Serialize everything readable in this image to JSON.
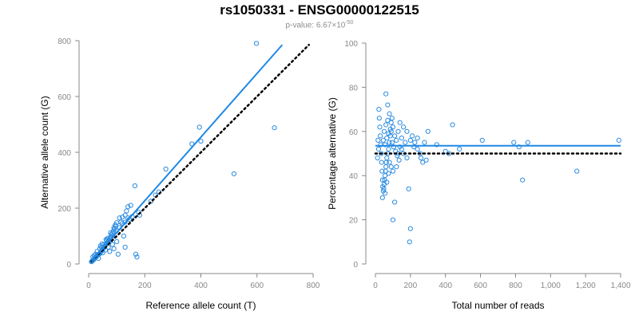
{
  "title": "rs1050331 - ENSG00000122515",
  "subtitle": {
    "prefix": "p-value: 6.67×10",
    "exponent": "-50"
  },
  "colors": {
    "points": "#2a8be0",
    "fit": "#1e88e5",
    "reference": "#000000",
    "axis": "#888888"
  },
  "chart_data": [
    {
      "type": "scatter",
      "xlabel": "Reference allele count (T)",
      "ylabel": "Alternative allele count (G)",
      "xlim": [
        0,
        800
      ],
      "ylim": [
        0,
        800
      ],
      "xticks": [
        "0",
        "200",
        "400",
        "600",
        "800"
      ],
      "yticks": [
        "0",
        "200",
        "400",
        "600",
        "800"
      ],
      "fit_line": {
        "x": [
          10,
          690
        ],
        "y": [
          10,
          785
        ]
      },
      "reference_line": {
        "x": [
          10,
          785
        ],
        "y": [
          10,
          785
        ]
      },
      "points": [
        [
          598,
          790
        ],
        [
          395,
          490
        ],
        [
          662,
          488
        ],
        [
          400,
          440
        ],
        [
          368,
          430
        ],
        [
          518,
          323
        ],
        [
          275,
          340
        ],
        [
          250,
          258
        ],
        [
          238,
          247
        ],
        [
          222,
          225
        ],
        [
          165,
          280
        ],
        [
          168,
          35
        ],
        [
          172,
          25
        ],
        [
          150,
          210
        ],
        [
          140,
          205
        ],
        [
          182,
          175
        ],
        [
          178,
          185
        ],
        [
          135,
          190
        ],
        [
          130,
          175
        ],
        [
          120,
          168
        ],
        [
          110,
          165
        ],
        [
          100,
          148
        ],
        [
          95,
          140
        ],
        [
          90,
          130
        ],
        [
          88,
          118
        ],
        [
          85,
          110
        ],
        [
          80,
          105
        ],
        [
          78,
          95
        ],
        [
          75,
          90
        ],
        [
          72,
          85
        ],
        [
          70,
          80
        ],
        [
          65,
          75
        ],
        [
          62,
          72
        ],
        [
          60,
          68
        ],
        [
          58,
          62
        ],
        [
          55,
          60
        ],
        [
          52,
          55
        ],
        [
          50,
          52
        ],
        [
          48,
          48
        ],
        [
          45,
          45
        ],
        [
          42,
          42
        ],
        [
          40,
          38
        ],
        [
          38,
          36
        ],
        [
          35,
          34
        ],
        [
          33,
          32
        ],
        [
          30,
          30
        ],
        [
          28,
          26
        ],
        [
          25,
          24
        ],
        [
          22,
          22
        ],
        [
          20,
          18
        ],
        [
          18,
          16
        ],
        [
          16,
          14
        ],
        [
          14,
          12
        ],
        [
          12,
          10
        ],
        [
          10,
          8
        ],
        [
          40,
          55
        ],
        [
          45,
          60
        ],
        [
          55,
          70
        ],
        [
          65,
          85
        ],
        [
          85,
          100
        ],
        [
          100,
          120
        ],
        [
          110,
          130
        ],
        [
          120,
          145
        ],
        [
          130,
          150
        ],
        [
          145,
          160
        ],
        [
          155,
          170
        ],
        [
          60,
          50
        ],
        [
          70,
          60
        ],
        [
          85,
          70
        ],
        [
          100,
          80
        ],
        [
          125,
          100
        ],
        [
          130,
          60
        ],
        [
          105,
          35
        ],
        [
          90,
          55
        ],
        [
          75,
          45
        ],
        [
          35,
          20
        ],
        [
          30,
          45
        ],
        [
          25,
          35
        ],
        [
          20,
          30
        ],
        [
          15,
          25
        ],
        [
          50,
          40
        ],
        [
          42,
          65
        ],
        [
          48,
          72
        ],
        [
          62,
          88
        ],
        [
          68,
          92
        ],
        [
          78,
          112
        ],
        [
          92,
          125
        ],
        [
          96,
          135
        ],
        [
          115,
          150
        ],
        [
          140,
          165
        ]
      ]
    },
    {
      "type": "scatter",
      "xlabel": "Total number of reads",
      "ylabel": "Percentage alternative (G)",
      "xlim": [
        0,
        1400
      ],
      "ylim": [
        0,
        100
      ],
      "xticks": [
        "0",
        "200",
        "400",
        "600",
        "800",
        "1,000",
        "1,200",
        "1,400"
      ],
      "yticks": [
        "0",
        "20",
        "40",
        "60",
        "80",
        "100"
      ],
      "fit_line": {
        "x": [
          0,
          1400
        ],
        "y": [
          53.5,
          53.5
        ]
      },
      "reference_line": {
        "x": [
          0,
          1400
        ],
        "y": [
          50,
          50
        ]
      },
      "points": [
        [
          1390,
          56
        ],
        [
          1150,
          42
        ],
        [
          870,
          55
        ],
        [
          840,
          38
        ],
        [
          820,
          53
        ],
        [
          790,
          55
        ],
        [
          610,
          56
        ],
        [
          480,
          52
        ],
        [
          440,
          63
        ],
        [
          420,
          50
        ],
        [
          400,
          51
        ],
        [
          350,
          54
        ],
        [
          300,
          60
        ],
        [
          290,
          47
        ],
        [
          270,
          46
        ],
        [
          255,
          50
        ],
        [
          240,
          52
        ],
        [
          225,
          55
        ],
        [
          210,
          58
        ],
        [
          200,
          16
        ],
        [
          195,
          10
        ],
        [
          190,
          34
        ],
        [
          180,
          48
        ],
        [
          170,
          55
        ],
        [
          160,
          62
        ],
        [
          150,
          57
        ],
        [
          140,
          53
        ],
        [
          130,
          50
        ],
        [
          120,
          44
        ],
        [
          110,
          28
        ],
        [
          100,
          20
        ],
        [
          95,
          66
        ],
        [
          90,
          60
        ],
        [
          85,
          58
        ],
        [
          80,
          55
        ],
        [
          75,
          52
        ],
        [
          70,
          50
        ],
        [
          65,
          48
        ],
        [
          62,
          46
        ],
        [
          60,
          44
        ],
        [
          58,
          42
        ],
        [
          55,
          40
        ],
        [
          52,
          38
        ],
        [
          50,
          36
        ],
        [
          48,
          34
        ],
        [
          45,
          33
        ],
        [
          42,
          35
        ],
        [
          40,
          38
        ],
        [
          38,
          42
        ],
        [
          35,
          46
        ],
        [
          33,
          50
        ],
        [
          30,
          54
        ],
        [
          28,
          58
        ],
        [
          25,
          62
        ],
        [
          22,
          66
        ],
        [
          20,
          70
        ],
        [
          18,
          52
        ],
        [
          15,
          56
        ],
        [
          12,
          48
        ],
        [
          60,
          77
        ],
        [
          70,
          72
        ],
        [
          80,
          68
        ],
        [
          90,
          64
        ],
        [
          100,
          62
        ],
        [
          110,
          58
        ],
        [
          120,
          56
        ],
        [
          130,
          60
        ],
        [
          140,
          64
        ],
        [
          150,
          52
        ],
        [
          160,
          50
        ],
        [
          45,
          56
        ],
        [
          55,
          54
        ],
        [
          65,
          57
        ],
        [
          75,
          59
        ],
        [
          85,
          61
        ],
        [
          95,
          55
        ],
        [
          105,
          53
        ],
        [
          115,
          51
        ],
        [
          125,
          49
        ],
        [
          135,
          47
        ],
        [
          50,
          60
        ],
        [
          60,
          63
        ],
        [
          70,
          65
        ],
        [
          80,
          46
        ],
        [
          90,
          44
        ],
        [
          100,
          42
        ],
        [
          40,
          30
        ],
        [
          55,
          32
        ],
        [
          65,
          37
        ],
        [
          75,
          41
        ],
        [
          180,
          60
        ],
        [
          200,
          56
        ],
        [
          220,
          53
        ],
        [
          240,
          57
        ],
        [
          260,
          48
        ],
        [
          280,
          55
        ]
      ]
    }
  ]
}
